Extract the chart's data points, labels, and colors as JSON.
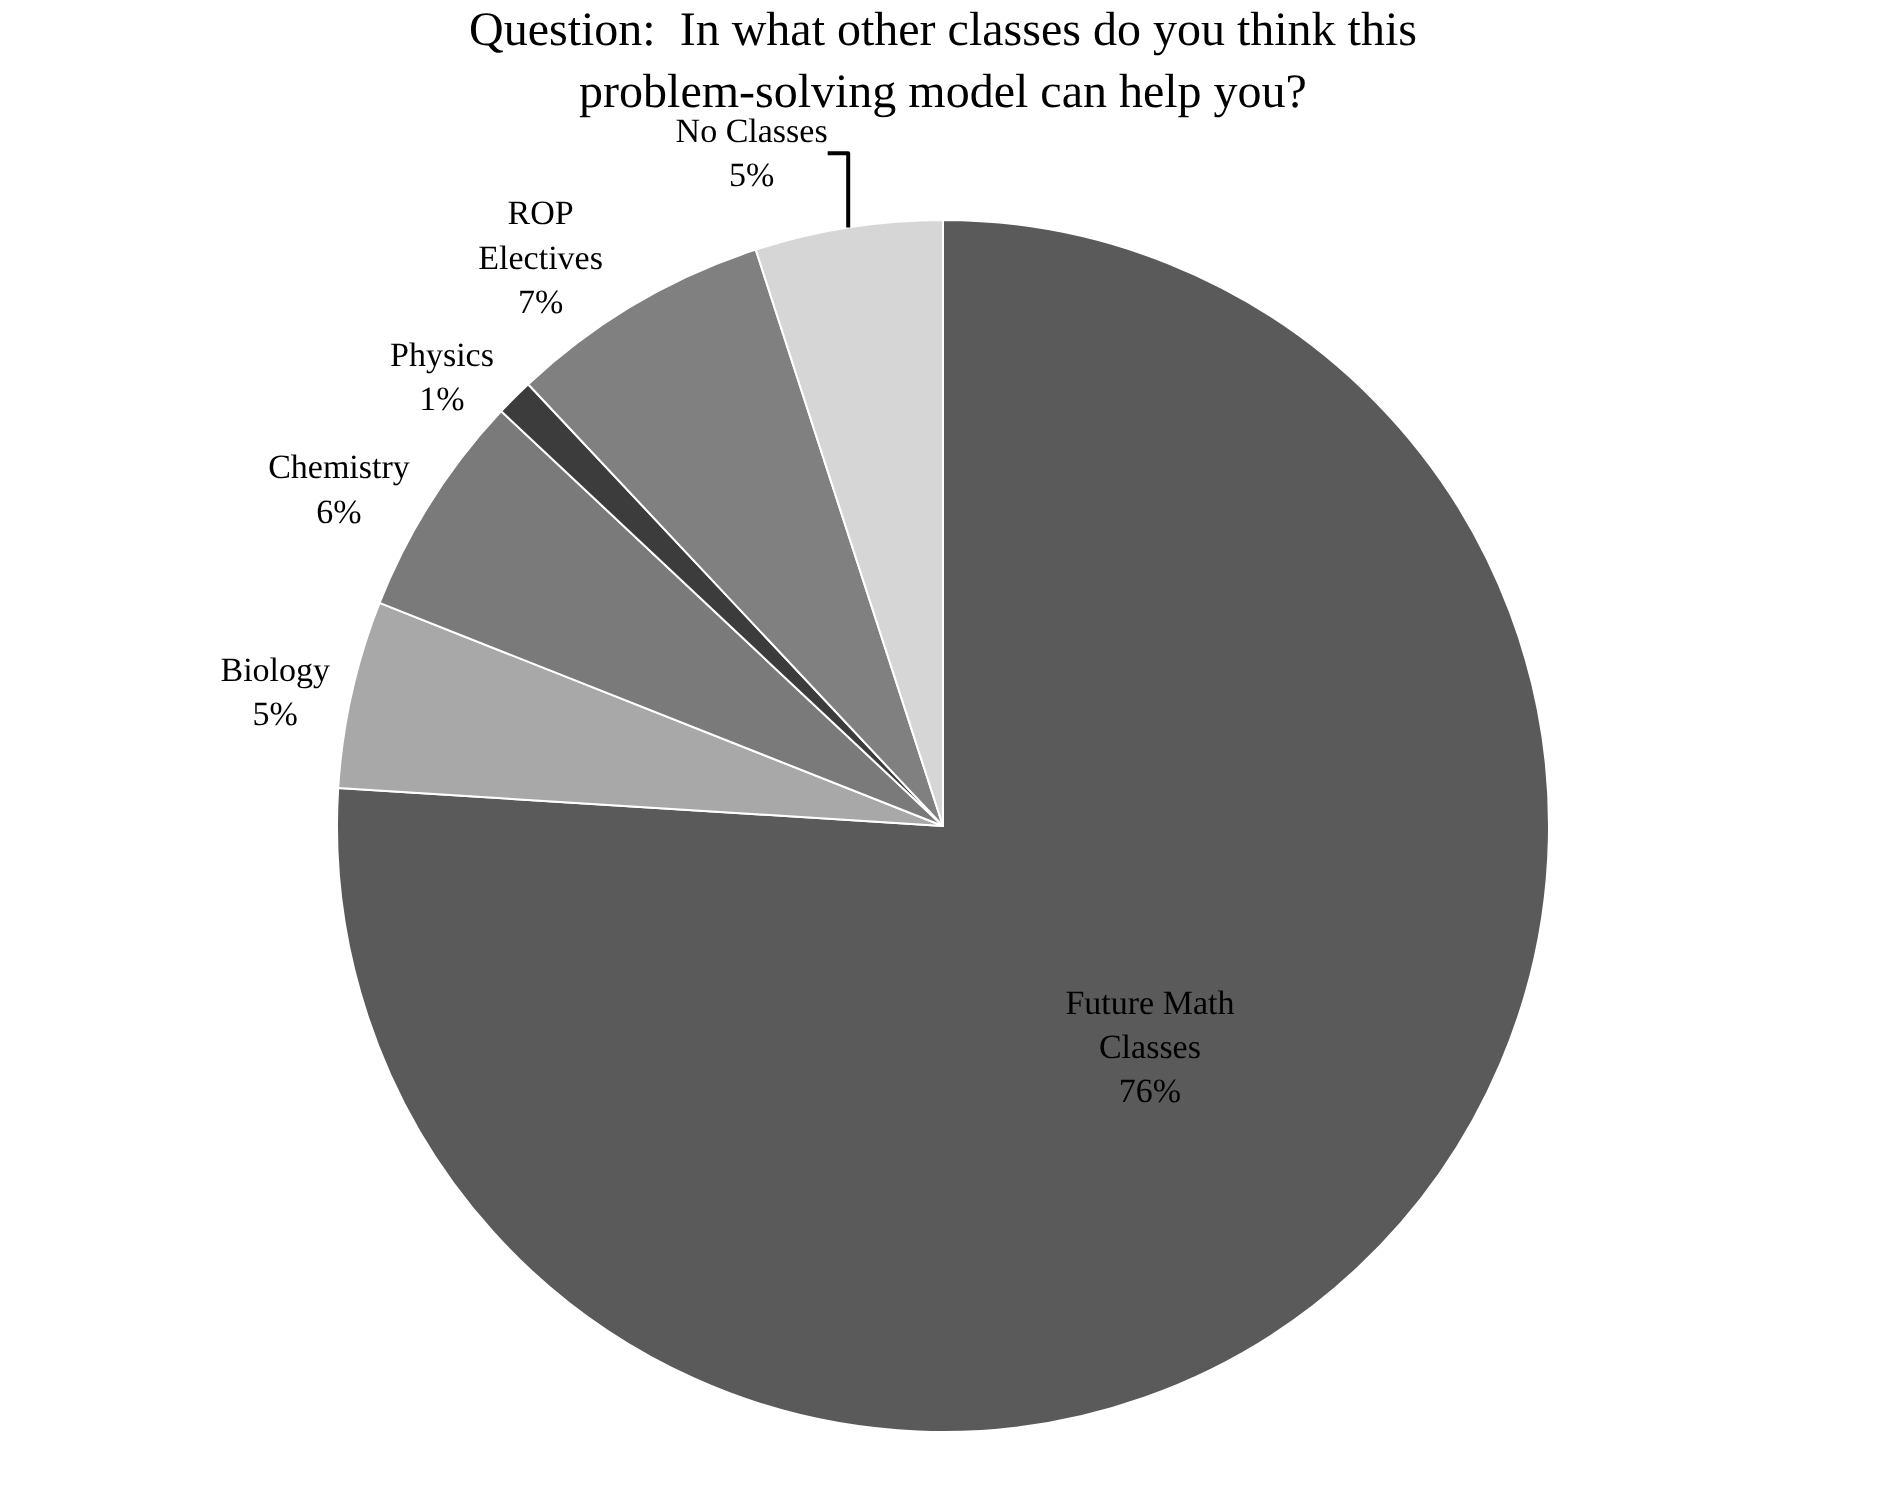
{
  "chart_data": {
    "type": "pie",
    "title": "Question:  In what other classes do you think this problem-solving model can help you?",
    "categories": [
      "Future Math Classes",
      "Biology",
      "Chemistry",
      "Physics",
      "ROP Electives",
      "No Classes"
    ],
    "values": [
      76,
      5,
      6,
      1,
      7,
      5
    ],
    "value_labels": [
      "76%",
      "5%",
      "6%",
      "1%",
      "7%",
      "5%"
    ],
    "colors": [
      "#5a5a5a",
      "#a8a8a8",
      "#7a7a7a",
      "#3c3c3c",
      "#808080",
      "#d6d6d6"
    ],
    "legend": false
  }
}
